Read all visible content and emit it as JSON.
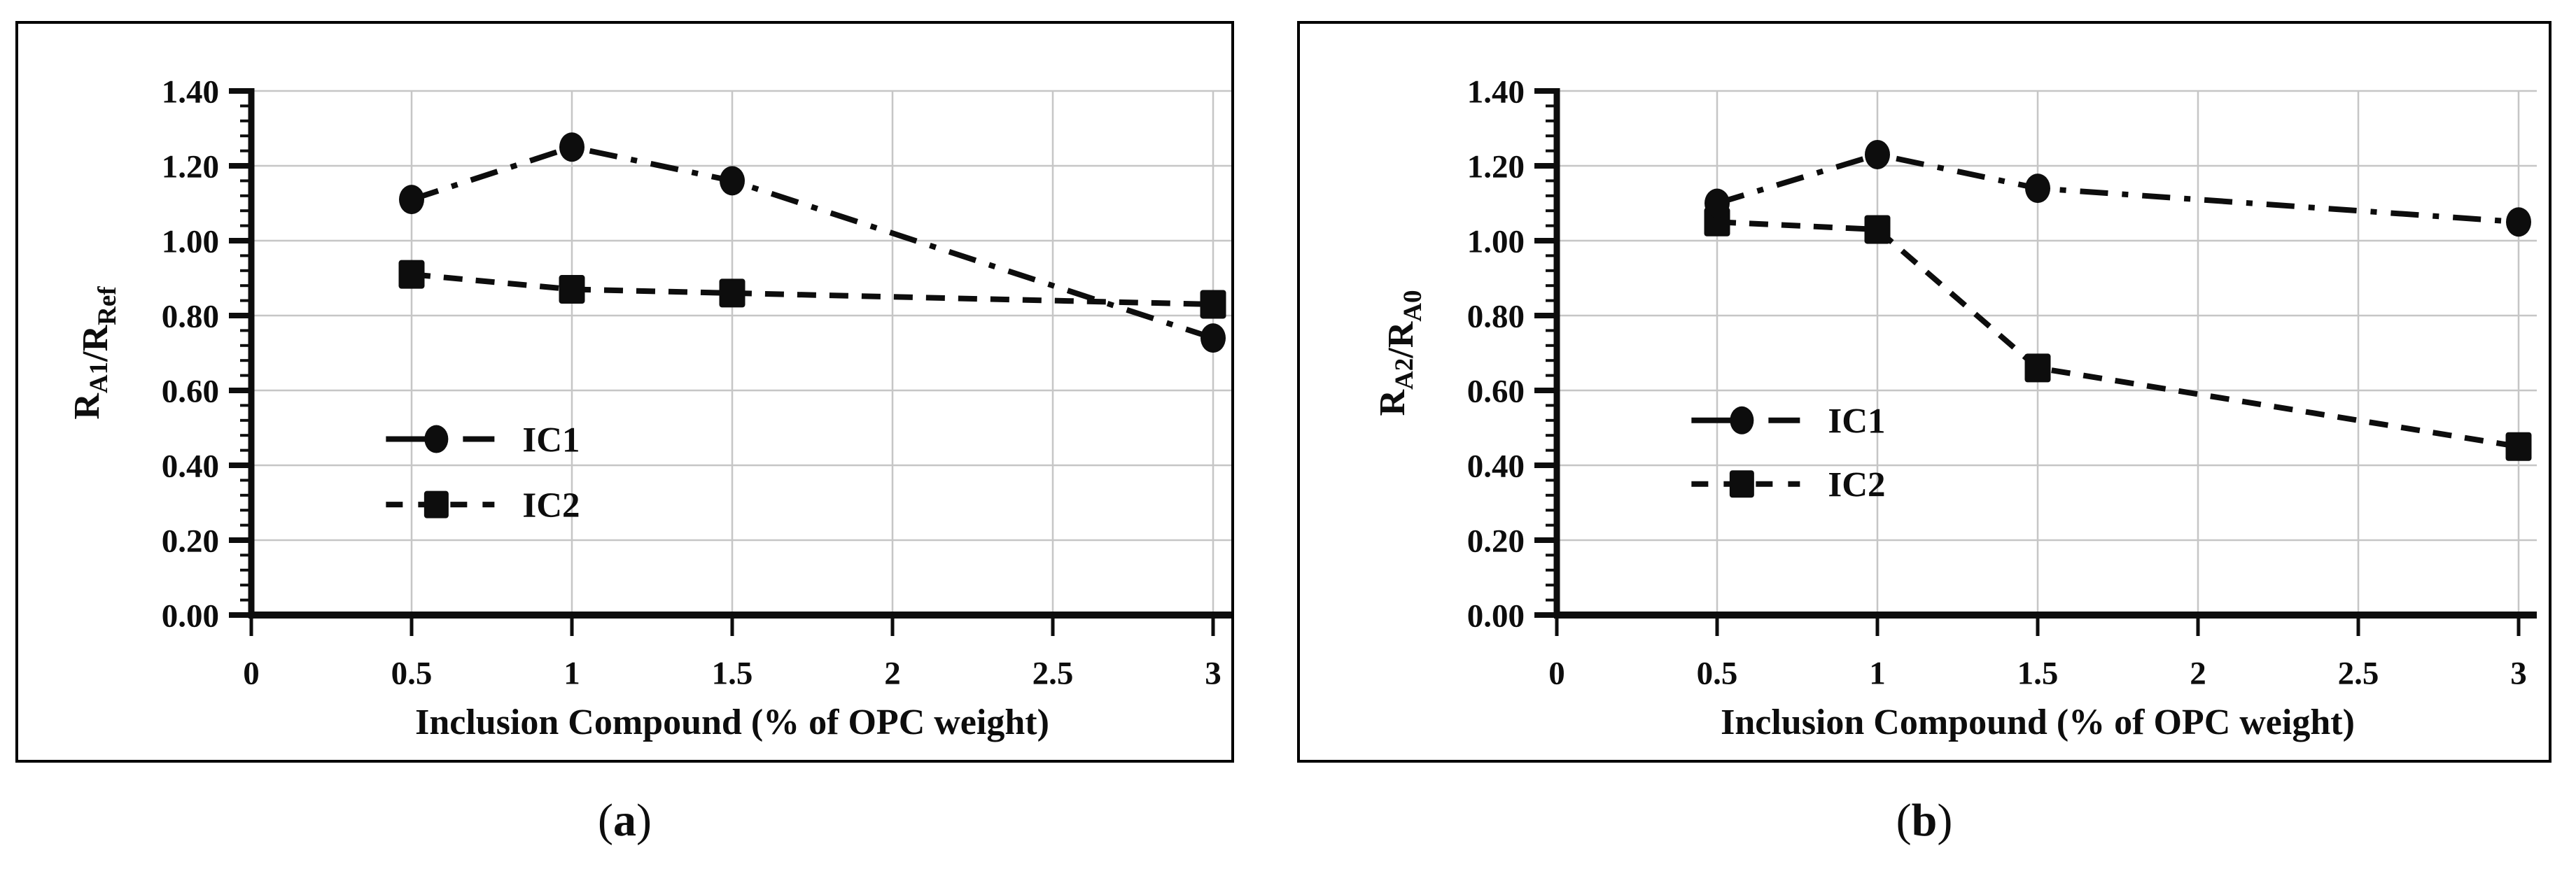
{
  "figure": {
    "background": "#ffffff",
    "ink": "#0d0d0d",
    "grid_color": "#c6c6c6"
  },
  "panels": [
    {
      "caption": {
        "pre": "(",
        "letter": "a",
        "post": ")"
      },
      "y_label_parts": [
        {
          "text": "R"
        },
        {
          "text": "A1",
          "sub": true
        },
        {
          "text": "/R"
        },
        {
          "text": "Ref",
          "sub": true
        }
      ]
    },
    {
      "caption": {
        "pre": "(",
        "letter": "b",
        "post": ")"
      },
      "y_label_parts": [
        {
          "text": "R"
        },
        {
          "text": "A2",
          "sub": true
        },
        {
          "text": "/R"
        },
        {
          "text": "A0",
          "sub": true
        }
      ]
    }
  ],
  "chart_data": [
    {
      "type": "line",
      "title": "",
      "xlabel": "Inclusion Compound (% of OPC weight)",
      "ylabel": "R_A1/R_Ref",
      "x": [
        0.5,
        1,
        1.5,
        3
      ],
      "series": [
        {
          "name": "IC1",
          "marker": "circle",
          "linestyle": "dashdot",
          "values": [
            1.11,
            1.25,
            1.16,
            0.74
          ]
        },
        {
          "name": "IC2",
          "marker": "square",
          "linestyle": "dashed",
          "values": [
            0.91,
            0.87,
            0.86,
            0.83
          ]
        }
      ],
      "xlim": [
        0,
        3
      ],
      "ylim": [
        0,
        1.4
      ],
      "x_ticks": [
        "0",
        "0.5",
        "1",
        "1.5",
        "2",
        "2.5",
        "3"
      ],
      "y_ticks": [
        "0.00",
        "0.20",
        "0.40",
        "0.60",
        "0.80",
        "1.00",
        "1.20",
        "1.40"
      ],
      "y_minor_step": 0.04,
      "grid": true,
      "legend": [
        "IC1",
        "IC2"
      ],
      "legend_position": "inside center-left"
    },
    {
      "type": "line",
      "title": "",
      "xlabel": "Inclusion Compound (% of OPC weight)",
      "ylabel": "R_A2/R_A0",
      "x": [
        0.5,
        1,
        1.5,
        3
      ],
      "series": [
        {
          "name": "IC1",
          "marker": "circle",
          "linestyle": "dashdot",
          "values": [
            1.1,
            1.23,
            1.14,
            1.05
          ]
        },
        {
          "name": "IC2",
          "marker": "square",
          "linestyle": "dashed",
          "values": [
            1.05,
            1.03,
            0.66,
            0.45
          ]
        }
      ],
      "xlim": [
        0,
        3
      ],
      "ylim": [
        0,
        1.4
      ],
      "x_ticks": [
        "0",
        "0.5",
        "1",
        "1.5",
        "2",
        "2.5",
        "3"
      ],
      "y_ticks": [
        "0.00",
        "0.20",
        "0.40",
        "0.60",
        "0.80",
        "1.00",
        "1.20",
        "1.40"
      ],
      "y_minor_step": 0.04,
      "grid": true,
      "legend": [
        "IC1",
        "IC2"
      ],
      "legend_position": "inside center-left"
    }
  ]
}
